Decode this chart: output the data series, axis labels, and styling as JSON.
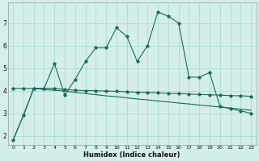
{
  "xlabel": "Humidex (Indice chaleur)",
  "bg_color": "#d4eeea",
  "grid_color": "#aaddd6",
  "line_color": "#1a6b5a",
  "x_ticks": [
    0,
    1,
    2,
    3,
    4,
    5,
    6,
    7,
    8,
    9,
    10,
    11,
    12,
    13,
    14,
    15,
    16,
    17,
    18,
    19,
    20,
    21,
    22,
    23
  ],
  "y_ticks": [
    2,
    3,
    4,
    5,
    6,
    7
  ],
  "ylim": [
    1.6,
    7.9
  ],
  "xlim": [
    -0.5,
    23.5
  ],
  "series1": [
    1.8,
    2.9,
    4.1,
    4.1,
    5.2,
    3.8,
    4.5,
    5.3,
    5.9,
    5.9,
    6.8,
    6.4,
    5.3,
    6.0,
    7.5,
    7.3,
    7.0,
    4.6,
    4.6,
    4.8,
    3.3,
    3.2,
    3.1,
    3.0
  ],
  "series2": [
    4.1,
    4.1,
    4.1,
    4.1,
    4.1,
    4.05,
    4.02,
    4.0,
    4.0,
    3.98,
    3.97,
    3.95,
    3.93,
    3.92,
    3.9,
    3.88,
    3.87,
    3.85,
    3.83,
    3.82,
    3.8,
    3.78,
    3.77,
    3.75
  ],
  "series3": [
    1.8,
    2.9,
    4.1,
    4.05,
    4.02,
    3.98,
    3.92,
    3.87,
    3.82,
    3.77,
    3.73,
    3.68,
    3.63,
    3.59,
    3.54,
    3.5,
    3.45,
    3.41,
    3.36,
    3.32,
    3.27,
    3.23,
    3.18,
    3.13
  ]
}
